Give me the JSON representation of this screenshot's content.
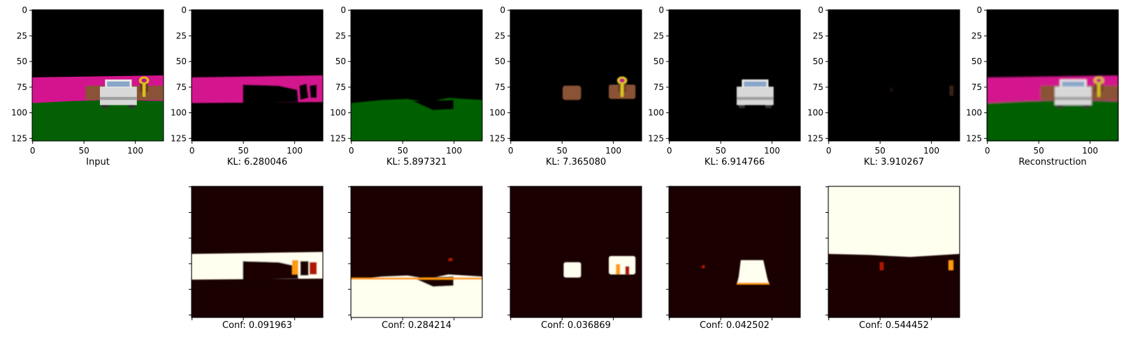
{
  "chart_data": {
    "type": "figure-grid",
    "image_axis": {
      "range": [
        0,
        127
      ],
      "xticks": [
        0,
        50,
        100
      ],
      "yticks": [
        0,
        25,
        50,
        75,
        100,
        125
      ]
    },
    "top_row": [
      {
        "label": "Input",
        "content": "scene"
      },
      {
        "label": "KL: 6.280046",
        "content": "magenta-band"
      },
      {
        "label": "KL: 5.897321",
        "content": "green-ground"
      },
      {
        "label": "KL: 7.365080",
        "content": "objects"
      },
      {
        "label": "KL: 6.914766",
        "content": "car"
      },
      {
        "label": "KL: 3.910267",
        "content": "faint"
      },
      {
        "label": "Reconstruction",
        "content": "scene-blur"
      }
    ],
    "bottom_row": [
      {
        "label": "Conf: 0.091963",
        "content": "band"
      },
      {
        "label": "Conf: 0.284214",
        "content": "ground"
      },
      {
        "label": "Conf: 0.036869",
        "content": "objects"
      },
      {
        "label": "Conf: 0.042502",
        "content": "car"
      },
      {
        "label": "Conf: 0.544452",
        "content": "sky"
      }
    ],
    "colors": {
      "sky": "#000000",
      "magenta": "#d4148e",
      "green": "#056005",
      "brown": "#8a5236",
      "car": "#d8d8d8",
      "yellow": "#d8c21a",
      "heat_high": "#fffff0",
      "heat_mid": "#ff9a10",
      "heat_low": "#b01800",
      "heat_bg": "#1a0000"
    }
  }
}
